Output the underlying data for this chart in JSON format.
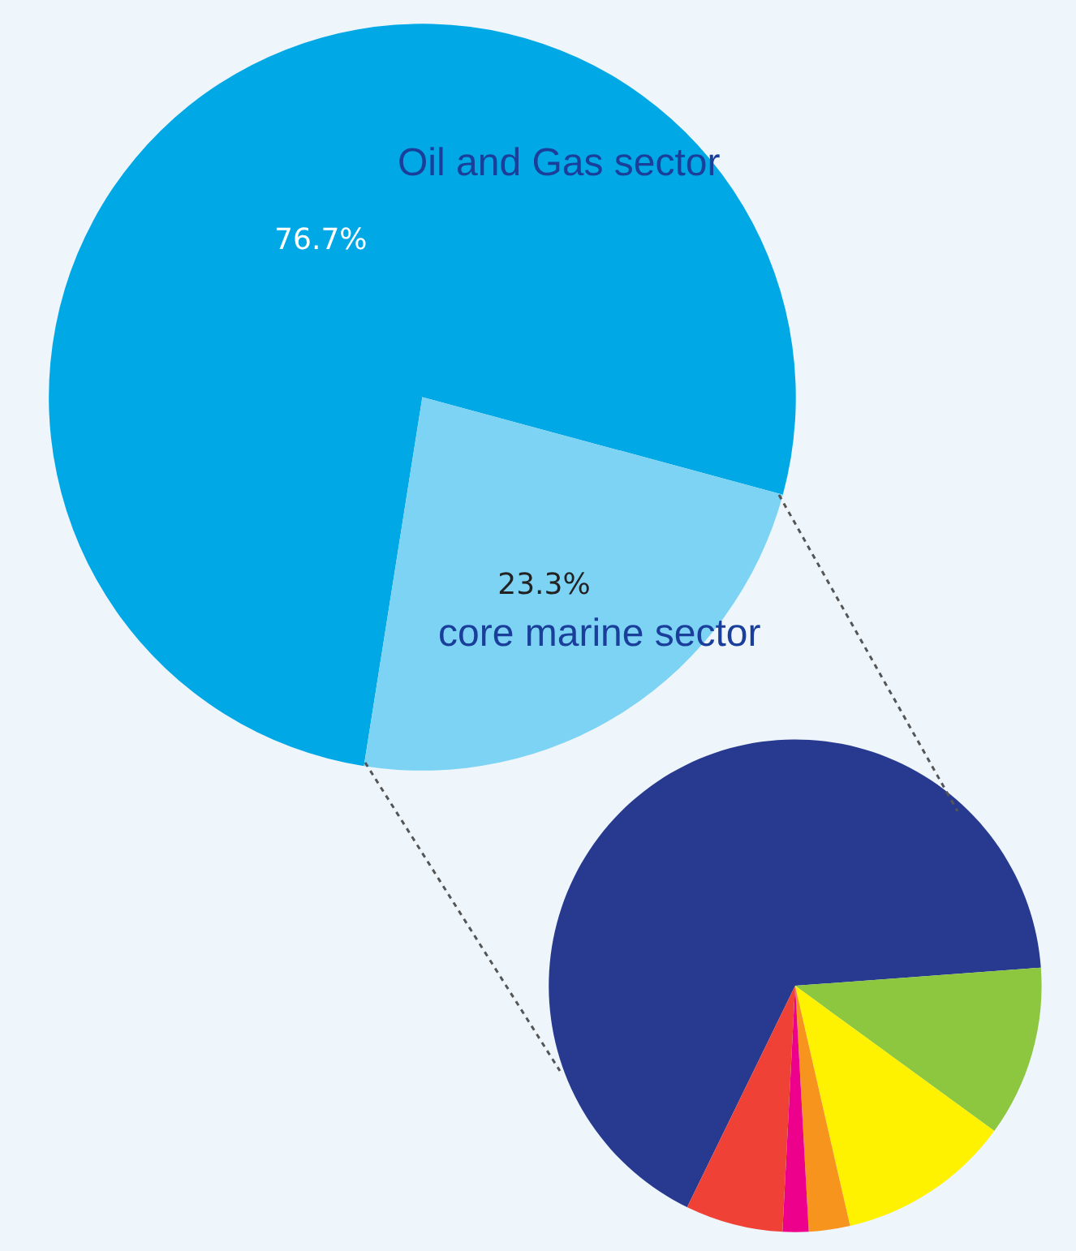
{
  "chart_data": [
    {
      "type": "pie",
      "categories": [
        "Oil and Gas sector",
        "core marine sector"
      ],
      "values": [
        76.7,
        23.3
      ],
      "colors": [
        "#00a8e6",
        "#7dd3f4"
      ],
      "value_labels": [
        "76.7%",
        "23.3%"
      ],
      "legend": false
    },
    {
      "type": "pie",
      "categories": [
        null,
        null,
        null,
        null,
        null,
        null
      ],
      "values": [
        66.6,
        11.2,
        11.4,
        2.7,
        1.7,
        6.4
      ],
      "colors": [
        "#283a8f",
        "#8dc63f",
        "#fff200",
        "#f7941d",
        "#ec008c",
        "#ef4136"
      ],
      "legend": false
    }
  ]
}
